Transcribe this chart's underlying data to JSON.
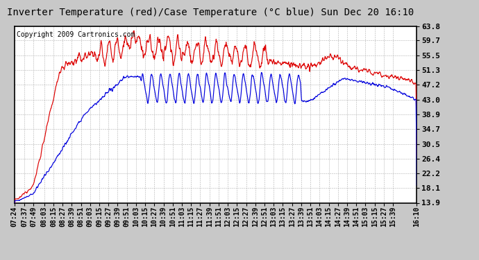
{
  "title": "Inverter Temperature (red)/Case Temperature (°C blue) Sun Dec 20 16:10",
  "copyright_text": "Copyright 2009 Cartronics.com",
  "yticks": [
    13.9,
    18.1,
    22.2,
    26.4,
    30.5,
    34.7,
    38.9,
    43.0,
    47.2,
    51.3,
    55.5,
    59.7,
    63.8
  ],
  "ylim": [
    13.9,
    63.8
  ],
  "fig_bg": "#c8c8c8",
  "plot_bg": "#ffffff",
  "grid_color": "#b0b0b0",
  "red_color": "#dd0000",
  "blue_color": "#0000dd",
  "title_fontsize": 10,
  "copyright_fontsize": 7,
  "tick_fontsize": 8,
  "xtick_labels": [
    "07:24",
    "07:37",
    "07:49",
    "08:03",
    "08:15",
    "08:27",
    "08:39",
    "08:51",
    "09:03",
    "09:15",
    "09:27",
    "09:39",
    "09:51",
    "10:03",
    "10:15",
    "10:27",
    "10:39",
    "10:51",
    "11:03",
    "11:15",
    "11:27",
    "11:39",
    "11:51",
    "12:03",
    "12:15",
    "12:27",
    "12:39",
    "12:51",
    "13:03",
    "13:15",
    "13:27",
    "13:39",
    "13:51",
    "14:03",
    "14:15",
    "14:27",
    "14:39",
    "14:51",
    "15:03",
    "15:15",
    "15:27",
    "15:39",
    "16:10"
  ]
}
